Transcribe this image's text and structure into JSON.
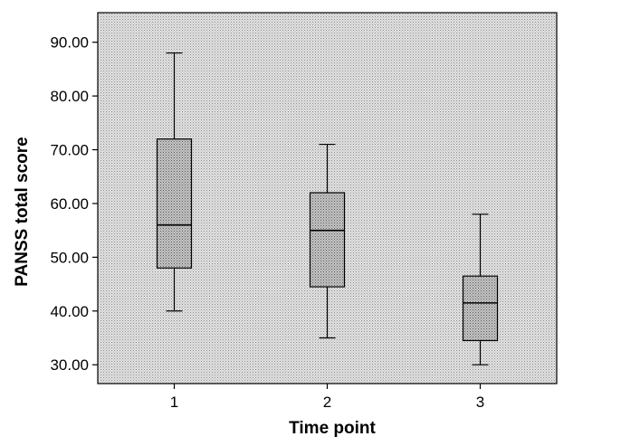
{
  "chart_data": {
    "type": "box",
    "title": "",
    "xlabel": "Time point",
    "ylabel": "PANSS total score",
    "ylim": [
      26.5,
      95.5
    ],
    "yticks": [
      "30.00",
      "40.00",
      "50.00",
      "60.00",
      "70.00",
      "80.00",
      "90.00"
    ],
    "ytick_values": [
      30,
      40,
      50,
      60,
      70,
      80,
      90
    ],
    "categories": [
      "1",
      "2",
      "3"
    ],
    "boxes": [
      {
        "category": "1",
        "min": 40,
        "q1": 48,
        "median": 56,
        "q3": 72,
        "max": 88
      },
      {
        "category": "2",
        "min": 35,
        "q1": 44.5,
        "median": 55,
        "q3": 62,
        "max": 71
      },
      {
        "category": "3",
        "min": 30,
        "q1": 34.5,
        "median": 41.5,
        "q3": 46.5,
        "max": 58
      }
    ],
    "grid": false,
    "colors": {
      "plot_background": "#d8d8d8",
      "box_fill": "#b4b4b4",
      "stroke": "#000000"
    }
  }
}
